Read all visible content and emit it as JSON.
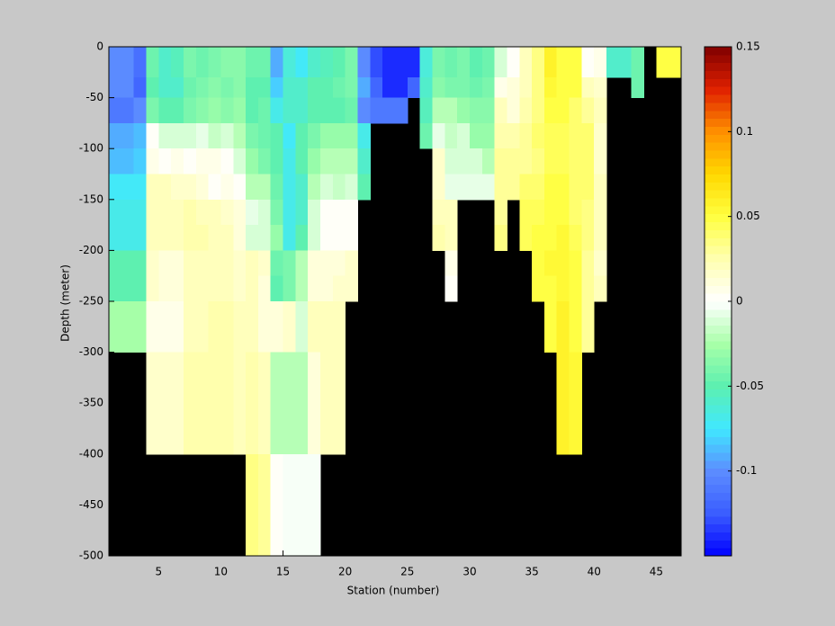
{
  "chart_data": {
    "type": "heatmap",
    "xlabel": "Station (number)",
    "ylabel": "Depth (meter)",
    "xlim": [
      1,
      47
    ],
    "ylim": [
      -500,
      0
    ],
    "xticks": [
      5,
      10,
      15,
      20,
      25,
      30,
      35,
      40,
      45
    ],
    "yticks": [
      0,
      -50,
      -100,
      -150,
      -200,
      -250,
      -300,
      -350,
      -400,
      -450,
      -500
    ],
    "x_edges": [
      1,
      2,
      3,
      4,
      5,
      6,
      7,
      8,
      9,
      10,
      11,
      12,
      13,
      14,
      15,
      16,
      17,
      18,
      19,
      20,
      21,
      22,
      23,
      24,
      25,
      26,
      27,
      28,
      29,
      30,
      31,
      32,
      33,
      34,
      35,
      36,
      37,
      38,
      39,
      40,
      41,
      42,
      43,
      44,
      45,
      46,
      47
    ],
    "y_edges": [
      0,
      -30,
      -50,
      -75,
      -100,
      -125,
      -150,
      -175,
      -200,
      -225,
      -250,
      -300,
      -400,
      -500
    ],
    "values": [
      [
        -0.1,
        -0.1,
        -0.11,
        -0.09,
        -0.085,
        -0.075,
        -0.07,
        -0.07,
        -0.05,
        -0.05,
        -0.025,
        null,
        null
      ],
      [
        -0.1,
        -0.1,
        -0.11,
        -0.09,
        -0.085,
        -0.075,
        -0.07,
        -0.07,
        -0.05,
        -0.05,
        -0.025,
        null,
        null
      ],
      [
        -0.115,
        -0.12,
        -0.1,
        -0.085,
        -0.08,
        -0.075,
        -0.07,
        -0.07,
        -0.05,
        -0.05,
        -0.025,
        null,
        null
      ],
      [
        -0.045,
        -0.05,
        -0.04,
        0,
        0.005,
        0.02,
        0.02,
        0.02,
        0.015,
        0.015,
        0.005,
        0.015,
        null
      ],
      [
        -0.06,
        -0.06,
        -0.05,
        -0.01,
        0,
        0.02,
        0.02,
        0.02,
        0.01,
        0.01,
        0.005,
        0.015,
        null
      ],
      [
        -0.055,
        -0.06,
        -0.05,
        -0.01,
        0.005,
        0.015,
        0.02,
        0.02,
        0.01,
        0.01,
        0.005,
        0.015,
        null
      ],
      [
        -0.04,
        -0.045,
        -0.04,
        -0.01,
        0,
        0.015,
        0.025,
        0.025,
        0.02,
        0.02,
        0.02,
        0.025,
        null
      ],
      [
        -0.045,
        -0.04,
        -0.035,
        -0.005,
        0.005,
        0.01,
        0.02,
        0.025,
        0.02,
        0.02,
        0.02,
        0.025,
        null
      ],
      [
        -0.04,
        -0.035,
        -0.03,
        -0.015,
        0.005,
        0,
        0.02,
        0.02,
        0.02,
        0.02,
        0.025,
        0.025,
        null
      ],
      [
        -0.035,
        -0.04,
        -0.035,
        -0.01,
        0,
        0.005,
        0.015,
        0.02,
        0.02,
        0.02,
        0.025,
        0.025,
        null
      ],
      [
        -0.035,
        -0.035,
        -0.03,
        -0.02,
        -0.01,
        0,
        0.01,
        0.01,
        0.015,
        0.015,
        0.02,
        0.02,
        null
      ],
      [
        -0.045,
        -0.05,
        -0.05,
        -0.04,
        -0.03,
        -0.02,
        -0.005,
        -0.01,
        0.02,
        0.02,
        0.02,
        0.025,
        0.035
      ],
      [
        -0.045,
        -0.05,
        -0.045,
        -0.045,
        -0.04,
        -0.02,
        -0.01,
        -0.01,
        0.015,
        0.01,
        0.01,
        0.02,
        0.03
      ],
      [
        -0.09,
        -0.08,
        -0.07,
        -0.05,
        -0.05,
        -0.045,
        -0.04,
        -0.03,
        -0.045,
        -0.05,
        0.01,
        -0.02,
        0
      ],
      [
        -0.065,
        -0.06,
        -0.06,
        -0.075,
        -0.07,
        -0.07,
        -0.07,
        -0.07,
        -0.04,
        -0.04,
        0.015,
        -0.02,
        -0.002
      ],
      [
        -0.075,
        -0.06,
        -0.06,
        -0.05,
        -0.05,
        -0.06,
        -0.06,
        -0.05,
        -0.02,
        -0.02,
        -0.01,
        -0.02,
        -0.002
      ],
      [
        -0.06,
        -0.05,
        -0.05,
        -0.04,
        -0.03,
        -0.02,
        -0.01,
        -0.01,
        0.01,
        0.01,
        0.02,
        0.01,
        -0.002
      ],
      [
        -0.055,
        -0.05,
        -0.05,
        -0.03,
        -0.02,
        -0.01,
        0,
        0,
        0.01,
        0.01,
        0.02,
        0.02,
        null
      ],
      [
        -0.05,
        -0.045,
        -0.05,
        -0.03,
        -0.02,
        -0.015,
        0,
        0,
        0.01,
        0.015,
        0.02,
        0.02,
        null
      ],
      [
        -0.04,
        -0.04,
        -0.045,
        -0.03,
        -0.02,
        -0.01,
        0,
        0,
        0.015,
        0.015,
        null,
        null,
        null
      ],
      [
        -0.1,
        -0.09,
        -0.1,
        -0.07,
        -0.06,
        -0.05,
        null,
        null,
        null,
        null,
        null,
        null,
        null
      ],
      [
        -0.13,
        -0.12,
        -0.11,
        null,
        null,
        null,
        null,
        null,
        null,
        null,
        null,
        null,
        null
      ],
      [
        -0.14,
        -0.14,
        -0.11,
        null,
        null,
        null,
        null,
        null,
        null,
        null,
        null,
        null,
        null
      ],
      [
        -0.14,
        -0.14,
        -0.11,
        null,
        null,
        null,
        null,
        null,
        null,
        null,
        null,
        null,
        null
      ],
      [
        -0.14,
        -0.12,
        null,
        null,
        null,
        null,
        null,
        null,
        null,
        null,
        null,
        null,
        null
      ],
      [
        -0.065,
        -0.06,
        -0.055,
        -0.045,
        null,
        null,
        null,
        null,
        null,
        null,
        null,
        null,
        null
      ],
      [
        -0.04,
        -0.035,
        -0.02,
        -0.005,
        0.015,
        0.015,
        0.02,
        0.025,
        null,
        null,
        null,
        null,
        null
      ],
      [
        -0.045,
        -0.04,
        -0.02,
        -0.015,
        -0.01,
        -0.005,
        0.02,
        0.02,
        0.005,
        0,
        null,
        null,
        null
      ],
      [
        -0.04,
        -0.04,
        -0.03,
        -0.01,
        -0.01,
        -0.005,
        null,
        null,
        null,
        null,
        null,
        null,
        null
      ],
      [
        -0.05,
        -0.045,
        -0.035,
        -0.03,
        -0.01,
        -0.005,
        null,
        null,
        null,
        null,
        null,
        null,
        null
      ],
      [
        -0.045,
        -0.04,
        -0.035,
        -0.03,
        -0.02,
        -0.005,
        null,
        null,
        null,
        null,
        null,
        null,
        null
      ],
      [
        -0.01,
        0.005,
        0.02,
        0.025,
        0.03,
        0.03,
        0.03,
        0.035,
        null,
        null,
        null,
        null,
        null
      ],
      [
        0,
        0.01,
        0.01,
        0.025,
        0.03,
        0.03,
        null,
        null,
        null,
        null,
        null,
        null,
        null
      ],
      [
        0.02,
        0.02,
        0.025,
        0.03,
        0.03,
        0.04,
        0.045,
        0.045,
        null,
        null,
        null,
        null,
        null
      ],
      [
        0.035,
        0.035,
        0.035,
        0.04,
        0.035,
        0.04,
        0.045,
        0.05,
        0.05,
        0.05,
        null,
        null,
        null
      ],
      [
        0.06,
        0.055,
        0.05,
        0.045,
        0.045,
        0.05,
        0.05,
        0.05,
        0.055,
        0.05,
        0.05,
        null,
        null
      ],
      [
        0.05,
        0.05,
        0.05,
        0.045,
        0.045,
        0.05,
        0.05,
        0.055,
        0.055,
        0.055,
        0.06,
        0.06,
        null
      ],
      [
        0.05,
        0.05,
        0.04,
        0.04,
        0.04,
        0.04,
        0.04,
        0.045,
        0.05,
        0.05,
        0.05,
        0.055,
        null
      ],
      [
        0,
        0.02,
        0.03,
        0.04,
        0.04,
        0.04,
        0.035,
        0.035,
        0.03,
        0.03,
        0.03,
        null,
        null
      ],
      [
        0.005,
        0.015,
        0.02,
        0.015,
        0.015,
        0.02,
        0.02,
        0.02,
        0.015,
        0.02,
        null,
        null,
        null
      ],
      [
        -0.06,
        null,
        null,
        null,
        null,
        null,
        null,
        null,
        null,
        null,
        null,
        null,
        null
      ],
      [
        -0.06,
        null,
        null,
        null,
        null,
        null,
        null,
        null,
        null,
        null,
        null,
        null,
        null
      ],
      [
        -0.045,
        -0.045,
        null,
        null,
        null,
        null,
        null,
        null,
        null,
        null,
        null,
        null,
        null
      ],
      [
        null,
        null,
        null,
        null,
        null,
        null,
        null,
        null,
        null,
        null,
        null,
        null,
        null
      ],
      [
        0.05,
        null,
        null,
        null,
        null,
        null,
        null,
        null,
        null,
        null,
        null,
        null,
        null
      ],
      [
        0.05,
        null,
        null,
        null,
        null,
        null,
        null,
        null,
        null,
        null,
        null,
        null,
        null
      ]
    ],
    "clim": [
      -0.15,
      0.15
    ],
    "cticks": [
      0.15,
      0.1,
      0.05,
      0,
      -0.05,
      -0.1
    ],
    "colormap": [
      "#0000ff",
      "#3a5cff",
      "#5c8cff",
      "#40e8ff",
      "#5cf0b0",
      "#a8ffa8",
      "#ffffff",
      "#ffffb0",
      "#ffff40",
      "#ffd800",
      "#ff9000",
      "#e02000",
      "#800000"
    ],
    "colormap_levels": 64,
    "nan_color": "#000000"
  }
}
